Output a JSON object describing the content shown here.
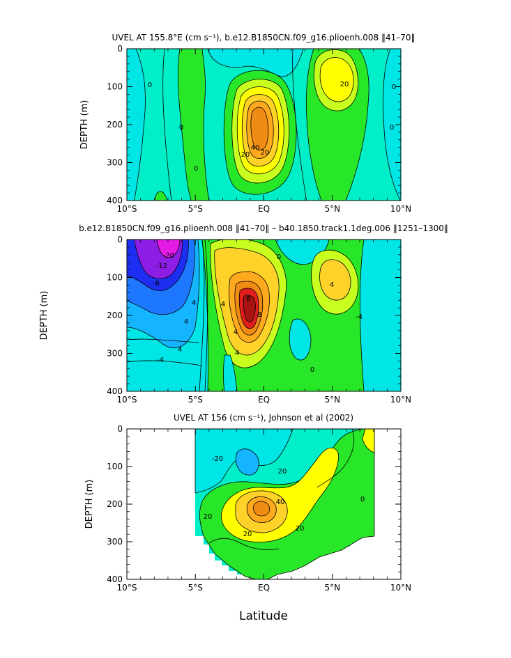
{
  "figure": {
    "xlabel": "Latitude",
    "colors": {
      "magenta": "#e41be4",
      "purple": "#8e1ee6",
      "blue": "#1e2ef0",
      "mid_blue": "#1e78ff",
      "sky": "#14b4ff",
      "cyan": "#00e6e6",
      "aqua": "#00eec8",
      "teal_green": "#18e8a8",
      "mint": "#5af078",
      "green": "#28e628",
      "light_green": "#78f00a",
      "yellow_green": "#c8ff1e",
      "yellow": "#ffff00",
      "gold": "#ffd22a",
      "orange": "#ffaa1e",
      "dark_orange": "#f08c14",
      "red": "#e11e1e",
      "dark_red": "#a81414"
    }
  },
  "chart_data": [
    {
      "type": "contour",
      "title": "UVEL AT 155.8°E (cm s⁻¹), b.e12.B1850CN.f09_g16.plioenh.008 ‖41–70‖",
      "ylabel": "DEPTH (m)",
      "xlim": [
        -10,
        10
      ],
      "ylim": [
        400,
        0
      ],
      "xticks": [
        "10°S",
        "5°S",
        "EQ",
        "5°N",
        "10°N"
      ],
      "yticks": [
        "0",
        "100",
        "200",
        "300",
        "400"
      ],
      "contour_labels": [
        "0",
        "0",
        "0",
        "0",
        "0",
        "20",
        "20",
        "20",
        "40"
      ],
      "features": [
        {
          "kind": "max",
          "lat": -0.5,
          "depth": 190,
          "value": 60
        },
        {
          "kind": "max",
          "lat": 3.8,
          "depth": 100,
          "value": 30
        }
      ]
    },
    {
      "type": "contour",
      "title": "b.e12.B1850CN.f09_g16.plioenh.008 ‖41–70‖ – b40.1850.track1.1deg.006 ‖1251–1300‖",
      "ylabel": "DEPTH (m)",
      "xlim": [
        -10,
        10
      ],
      "ylim": [
        400,
        0
      ],
      "xticks": [
        "10°S",
        "5°S",
        "EQ",
        "5°N",
        "10°N"
      ],
      "yticks": [
        "0",
        "100",
        "200",
        "300",
        "400"
      ],
      "contour_labels": [
        "4",
        "4",
        "4",
        "4",
        "4",
        "4",
        "4",
        "8",
        "8",
        "0",
        "0",
        "-4",
        "-4",
        "-8",
        "-12",
        "-20"
      ],
      "features": [
        {
          "kind": "max",
          "lat": -1.3,
          "depth": 200,
          "value": 24
        },
        {
          "kind": "max",
          "lat": 4.8,
          "depth": 110,
          "value": 8
        },
        {
          "kind": "min",
          "lat": -7.5,
          "depth": 40,
          "value": -24
        }
      ]
    },
    {
      "type": "contour",
      "title": "UVEL AT 156 (cm s⁻¹), Johnson et al (2002)",
      "ylabel": "DEPTH (m)",
      "xlim": [
        -10,
        10
      ],
      "ylim": [
        400,
        0
      ],
      "xticks": [
        "10°S",
        "5°S",
        "EQ",
        "5°N",
        "10°N"
      ],
      "yticks": [
        "0",
        "100",
        "200",
        "300",
        "400"
      ],
      "contour_labels": [
        "0",
        "-20",
        "20",
        "20",
        "20",
        "20",
        "40"
      ],
      "data_extent": {
        "lat_min": -5,
        "lat_max": 8
      },
      "features": [
        {
          "kind": "max",
          "lat": -0.5,
          "depth": 200,
          "value": 50
        },
        {
          "kind": "min",
          "lat": -3.0,
          "depth": 80,
          "value": -25
        }
      ]
    }
  ]
}
